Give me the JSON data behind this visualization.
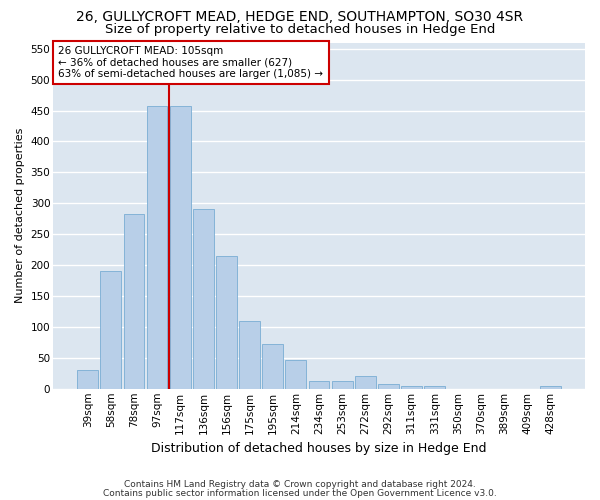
{
  "title1": "26, GULLYCROFT MEAD, HEDGE END, SOUTHAMPTON, SO30 4SR",
  "title2": "Size of property relative to detached houses in Hedge End",
  "xlabel": "Distribution of detached houses by size in Hedge End",
  "ylabel": "Number of detached properties",
  "categories": [
    "39sqm",
    "58sqm",
    "78sqm",
    "97sqm",
    "117sqm",
    "136sqm",
    "156sqm",
    "175sqm",
    "195sqm",
    "214sqm",
    "234sqm",
    "253sqm",
    "272sqm",
    "292sqm",
    "311sqm",
    "331sqm",
    "350sqm",
    "370sqm",
    "389sqm",
    "409sqm",
    "428sqm"
  ],
  "values": [
    30,
    190,
    283,
    457,
    457,
    290,
    215,
    110,
    73,
    47,
    13,
    12,
    20,
    8,
    5,
    5,
    0,
    0,
    0,
    0,
    5
  ],
  "bar_color": "#b8cfe8",
  "bar_edge_color": "#7aadd4",
  "red_line_x": 3.5,
  "annotation_text": "26 GULLYCROFT MEAD: 105sqm\n← 36% of detached houses are smaller (627)\n63% of semi-detached houses are larger (1,085) →",
  "annotation_box_color": "#ffffff",
  "annotation_box_edge": "#cc0000",
  "red_line_color": "#cc0000",
  "ylim": [
    0,
    560
  ],
  "yticks": [
    0,
    50,
    100,
    150,
    200,
    250,
    300,
    350,
    400,
    450,
    500,
    550
  ],
  "footer1": "Contains HM Land Registry data © Crown copyright and database right 2024.",
  "footer2": "Contains public sector information licensed under the Open Government Licence v3.0.",
  "plot_bg_color": "#dce6f0",
  "fig_bg_color": "#ffffff",
  "grid_color": "#ffffff",
  "title1_fontsize": 10,
  "title2_fontsize": 9.5,
  "xlabel_fontsize": 9,
  "ylabel_fontsize": 8,
  "tick_fontsize": 7.5,
  "footer_fontsize": 6.5
}
